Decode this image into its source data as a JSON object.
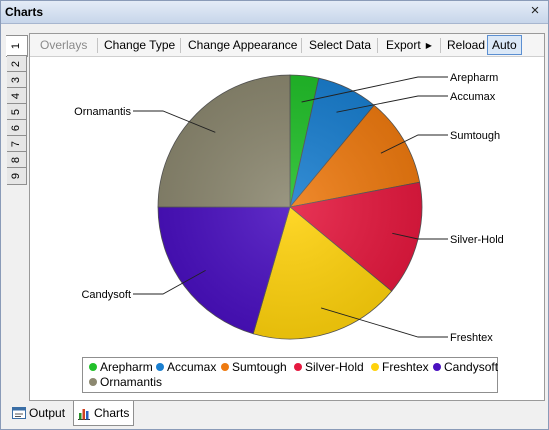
{
  "window": {
    "title": "Charts",
    "close_glyph": "×"
  },
  "side_tabs": [
    "1",
    "2",
    "3",
    "4",
    "5",
    "6",
    "7",
    "8",
    "9"
  ],
  "toolbar": {
    "overlays": "Overlays",
    "change_type": "Change Type",
    "change_appearance": "Change Appearance",
    "select_data": "Select Data",
    "export": "Export",
    "reload": "Reload",
    "auto": "Auto"
  },
  "chart_data": {
    "type": "pie",
    "title": "",
    "categories": [
      "Arepharm",
      "Accumax",
      "Sumtough",
      "Silver-Hold",
      "Freshtex",
      "Candysoft",
      "Ornamantis"
    ],
    "values": [
      3.5,
      7.5,
      11,
      14,
      18.5,
      20.5,
      25
    ],
    "colors": [
      "#22c02a",
      "#1a7fd0",
      "#ee7a10",
      "#e5193f",
      "#ffd20c",
      "#4a10c0",
      "#8c8870"
    ],
    "legend_position": "bottom"
  },
  "bottom_tabs": {
    "output": "Output",
    "charts": "Charts"
  },
  "icons": {
    "output": "output-window-icon",
    "charts": "bar-chart-icon"
  }
}
